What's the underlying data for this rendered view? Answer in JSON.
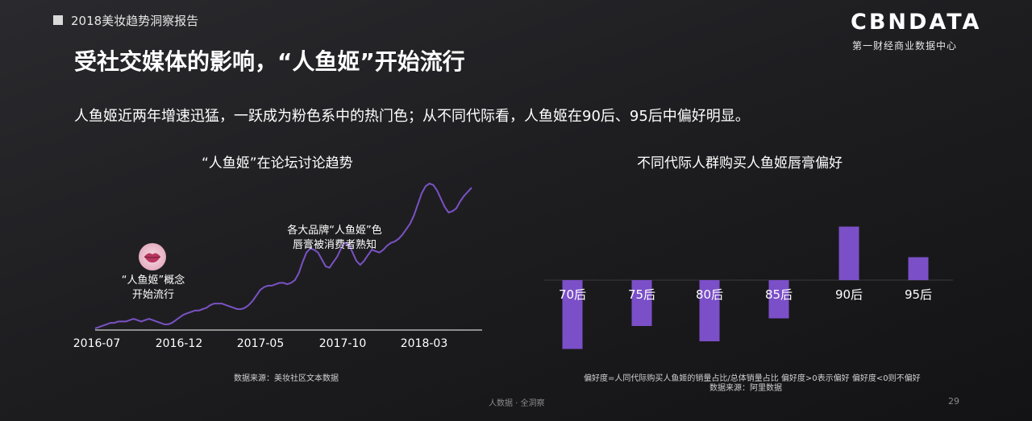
{
  "header": {
    "report_title": "2018美妆趋势洞察报告"
  },
  "logo": {
    "main": "CBNDATA",
    "sub": "第一财经商业数据中心"
  },
  "page": {
    "title": "受社交媒体的影响，“人鱼姬”开始流行",
    "subtitle": "人鱼姬近两年增速迅猛，一跃成为粉色系中的热门色；从不同代际看，人鱼姬在90后、95后中偏好明显。"
  },
  "colors": {
    "accent": "#7b4fc8",
    "line": "#7a52c4"
  },
  "icons": {
    "lips": "lips-icon"
  },
  "chart_data": [
    {
      "type": "line",
      "title": "“人鱼姬”在论坛讨论趋势",
      "x_tick_labels": [
        "2016-07",
        "2016-12",
        "2017-05",
        "2017-10",
        "2018-03"
      ],
      "x": [
        0,
        1,
        2,
        3,
        4,
        5,
        6,
        7,
        8,
        9,
        10,
        11,
        12,
        13,
        14,
        15,
        16,
        17,
        18,
        19,
        20,
        21,
        22,
        23,
        24,
        25,
        26,
        27,
        28,
        29,
        30,
        31,
        32,
        33,
        34,
        35,
        36,
        37,
        38,
        39,
        40,
        41,
        42,
        43,
        44,
        45,
        46,
        47,
        48,
        49,
        50,
        51,
        52,
        53,
        54,
        55,
        56,
        57,
        58,
        59,
        60,
        61,
        62,
        63,
        64,
        65,
        66,
        67,
        68,
        69,
        70,
        71,
        72,
        73,
        74,
        75,
        76,
        77,
        78,
        79,
        80,
        81,
        82,
        83,
        84,
        85,
        86,
        87,
        88,
        89,
        90,
        91,
        92,
        93,
        94,
        95,
        96,
        97,
        98
      ],
      "series": [
        {
          "values": [
            0,
            1,
            2,
            3,
            4,
            4,
            5,
            5,
            5,
            6,
            7,
            6,
            5,
            6,
            7,
            6,
            5,
            4,
            3,
            3,
            4,
            6,
            8,
            10,
            11,
            12,
            13,
            13,
            14,
            15,
            17,
            18,
            18,
            18,
            17,
            16,
            15,
            14,
            14,
            15,
            17,
            20,
            24,
            28,
            30,
            31,
            31,
            32,
            33,
            33,
            32,
            33,
            35,
            40,
            48,
            55,
            58,
            57,
            55,
            50,
            45,
            44,
            48,
            52,
            58,
            62,
            61,
            55,
            49,
            46,
            49,
            53,
            57,
            56,
            55,
            57,
            60,
            62,
            63,
            65,
            68,
            72,
            76,
            82,
            90,
            98,
            103,
            105,
            104,
            100,
            94,
            88,
            84,
            85,
            87,
            92,
            96,
            99,
            102
          ]
        }
      ],
      "annotations": [
        {
          "label_line1": "“人鱼姬”概念",
          "label_line2": "开始流行"
        },
        {
          "label_line1": "各大品牌“人鱼姬”色",
          "label_line2": "唇膏被消费者熟知"
        }
      ],
      "source": "数据来源：美妆社区文本数据"
    },
    {
      "type": "bar",
      "title": "不同代际人群购买人鱼姬唇膏偏好",
      "categories": [
        "70后",
        "75后",
        "80后",
        "85后",
        "90后",
        "95后"
      ],
      "values": [
        -0.9,
        -0.6,
        -0.8,
        -0.5,
        0.7,
        0.3
      ],
      "note": "偏好度=人同代际购买人鱼姬的销量占比/总体销量占比 偏好度>0表示偏好 偏好度<0则不偏好",
      "source": "数据来源：阿里数据"
    }
  ],
  "footer": {
    "text": "人数据 · 全洞察",
    "page_number": "29"
  }
}
